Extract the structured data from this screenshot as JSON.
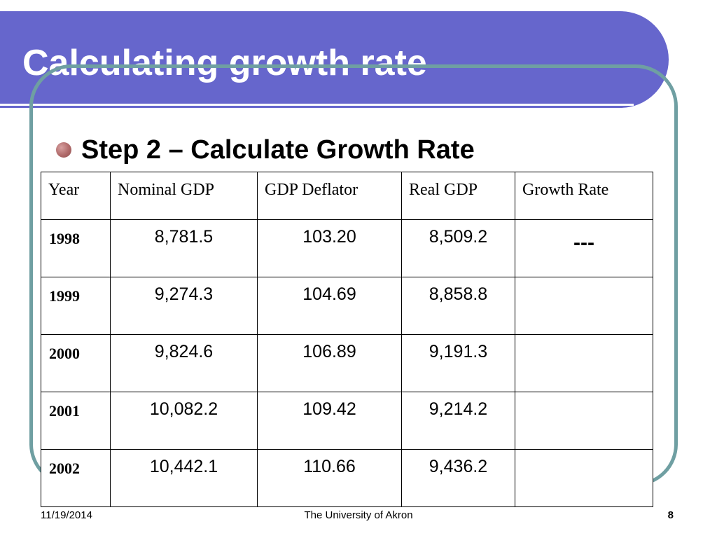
{
  "slide": {
    "title": "Calculating growth rate",
    "bullet": "Step 2 – Calculate Growth Rate"
  },
  "table": {
    "headers": [
      "Year",
      "Nominal GDP",
      "GDP Deflator",
      "Real GDP",
      "Growth Rate"
    ],
    "rows": [
      {
        "year": "1998",
        "nominal": "8,781.5",
        "deflator": "103.20",
        "real": "8,509.2",
        "growth": "---"
      },
      {
        "year": "1999",
        "nominal": "9,274.3",
        "deflator": "104.69",
        "real": "8,858.8",
        "growth": ""
      },
      {
        "year": "2000",
        "nominal": "9,824.6",
        "deflator": "106.89",
        "real": "9,191.3",
        "growth": ""
      },
      {
        "year": "2001",
        "nominal": "10,082.2",
        "deflator": "109.42",
        "real": "9,214.2",
        "growth": ""
      },
      {
        "year": "2002",
        "nominal": "10,442.1",
        "deflator": "110.66",
        "real": "9,436.2",
        "growth": ""
      }
    ]
  },
  "footer": {
    "date": "11/19/2014",
    "center": "The University of Akron",
    "page": "8"
  },
  "colors": {
    "title_banner": "#6666cc",
    "frame": "#6f9fa2",
    "bullet": "#b06a6a"
  }
}
